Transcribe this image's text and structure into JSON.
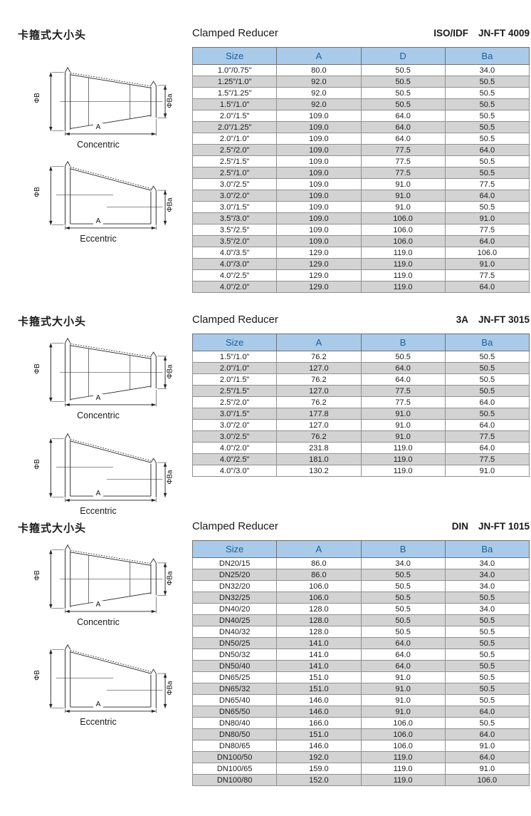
{
  "colors": {
    "header_bg": "#a9cbe9",
    "header_text": "#1f5c99",
    "row_bg": "#ffffff",
    "row_alt_bg": "#d3d3d3",
    "border": "#8f8f8f"
  },
  "drawing_labels": {
    "diameter_left": "ΦB",
    "diameter_right": "ΦBa",
    "length": "A",
    "concentric": "Concentric",
    "eccentric": "Eccentric"
  },
  "sections": [
    {
      "cn_title": "卡箍式大小头",
      "title": "Clamped Reducer",
      "standard": "ISO/IDF",
      "code": "JN-FT 4009",
      "columns": [
        "Size",
        "A",
        "D",
        "Ba"
      ],
      "rows": [
        [
          "1.0\"/0.75\"",
          "80.0",
          "50.5",
          "34.0"
        ],
        [
          "1.25\"/1.0\"",
          "92.0",
          "50.5",
          "50.5"
        ],
        [
          "1.5\"/1.25\"",
          "92.0",
          "50.5",
          "50.5"
        ],
        [
          "1.5\"/1.0\"",
          "92.0",
          "50.5",
          "50.5"
        ],
        [
          "2.0\"/1.5\"",
          "109.0",
          "64.0",
          "50.5"
        ],
        [
          "2.0\"/1.25\"",
          "109.0",
          "64.0",
          "50.5"
        ],
        [
          "2.0\"/1.0\"",
          "109.0",
          "64.0",
          "50.5"
        ],
        [
          "2.5\"/2.0\"",
          "109.0",
          "77.5",
          "64.0"
        ],
        [
          "2.5\"/1.5\"",
          "109.0",
          "77.5",
          "50.5"
        ],
        [
          "2.5\"/1.0\"",
          "109.0",
          "77.5",
          "50.5"
        ],
        [
          "3.0\"/2.5\"",
          "109.0",
          "91.0",
          "77.5"
        ],
        [
          "3.0\"/2.0\"",
          "109.0",
          "91.0",
          "64.0"
        ],
        [
          "3.0\"/1.5\"",
          "109.0",
          "91.0",
          "50.5"
        ],
        [
          "3.5\"/3.0\"",
          "109.0",
          "106.0",
          "91.0"
        ],
        [
          "3.5\"/2.5\"",
          "109.0",
          "106.0",
          "77.5"
        ],
        [
          "3.5\"/2.0\"",
          "109.0",
          "106.0",
          "64.0"
        ],
        [
          "4.0\"/3.5\"",
          "129.0",
          "119.0",
          "106.0"
        ],
        [
          "4.0\"/3.0\"",
          "129.0",
          "119.0",
          "91.0"
        ],
        [
          "4.0\"/2.5\"",
          "129.0",
          "119.0",
          "77.5"
        ],
        [
          "4.0\"/2.0\"",
          "129.0",
          "119.0",
          "64.0"
        ]
      ]
    },
    {
      "cn_title": "卡箍式大小头",
      "title": "Clamped Reducer",
      "standard": "3A",
      "code": "JN-FT 3015",
      "columns": [
        "Size",
        "A",
        "B",
        "Ba"
      ],
      "rows": [
        [
          "1.5\"/1.0\"",
          "76.2",
          "50.5",
          "50.5"
        ],
        [
          "2.0\"/1.0\"",
          "127.0",
          "64.0",
          "50.5"
        ],
        [
          "2.0\"/1.5\"",
          "76.2",
          "64.0",
          "50.5"
        ],
        [
          "2.5\"/1.5\"",
          "127.0",
          "77.5",
          "50.5"
        ],
        [
          "2.5\"/2.0\"",
          "76.2",
          "77.5",
          "64.0"
        ],
        [
          "3.0\"/1.5\"",
          "177.8",
          "91.0",
          "50.5"
        ],
        [
          "3.0\"/2.0\"",
          "127.0",
          "91.0",
          "64.0"
        ],
        [
          "3.0\"/2.5\"",
          "76.2",
          "91.0",
          "77.5"
        ],
        [
          "4.0\"/2.0\"",
          "231.8",
          "119.0",
          "64.0"
        ],
        [
          "4.0\"/2.5\"",
          "181.0",
          "119.0",
          "77.5"
        ],
        [
          "4.0\"/3.0\"",
          "130.2",
          "119.0",
          "91.0"
        ]
      ]
    },
    {
      "cn_title": "卡箍式大小头",
      "title": "Clamped Reducer",
      "standard": "DIN",
      "code": "JN-FT 1015",
      "columns": [
        "Size",
        "A",
        "B",
        "Ba"
      ],
      "rows": [
        [
          "DN20/15",
          "86.0",
          "34.0",
          "34.0"
        ],
        [
          "DN25/20",
          "86.0",
          "50.5",
          "34.0"
        ],
        [
          "DN32/20",
          "106.0",
          "50.5",
          "34.0"
        ],
        [
          "DN32/25",
          "106.0",
          "50.5",
          "50.5"
        ],
        [
          "DN40/20",
          "128.0",
          "50.5",
          "34.0"
        ],
        [
          "DN40/25",
          "128.0",
          "50.5",
          "50.5"
        ],
        [
          "DN40/32",
          "128.0",
          "50.5",
          "50.5"
        ],
        [
          "DN50/25",
          "141.0",
          "64.0",
          "50.5"
        ],
        [
          "DN50/32",
          "141.0",
          "64.0",
          "50.5"
        ],
        [
          "DN50/40",
          "141.0",
          "64.0",
          "50.5"
        ],
        [
          "DN65/25",
          "151.0",
          "91.0",
          "50.5"
        ],
        [
          "DN65/32",
          "151.0",
          "91.0",
          "50.5"
        ],
        [
          "DN65/40",
          "146.0",
          "91.0",
          "50.5"
        ],
        [
          "DN65/50",
          "146.0",
          "91.0",
          "64.0"
        ],
        [
          "DN80/40",
          "166.0",
          "106.0",
          "50.5"
        ],
        [
          "DN80/50",
          "151.0",
          "106.0",
          "64.0"
        ],
        [
          "DN80/65",
          "146.0",
          "106.0",
          "91.0"
        ],
        [
          "DN100/50",
          "192.0",
          "119.0",
          "64.0"
        ],
        [
          "DN100/65",
          "159.0",
          "119.0",
          "91.0"
        ],
        [
          "DN100/80",
          "152.0",
          "119.0",
          "106.0"
        ]
      ]
    }
  ]
}
